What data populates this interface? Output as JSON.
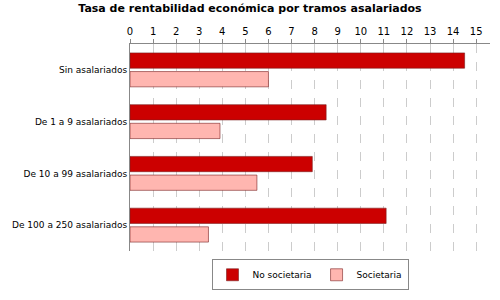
{
  "chart_data": {
    "type": "bar",
    "orientation": "horizontal",
    "title": "Tasa de rentabilidad económica por tramos asalariados",
    "categories": [
      "Sin asalariados",
      "De 1 a 9 asalariados",
      "De 10 a 99 asalariados",
      "De 100 a 250 asalariados"
    ],
    "series": [
      {
        "name": "No societaria",
        "color": "#cc0000",
        "values": [
          14.5,
          8.5,
          7.9,
          11.1
        ]
      },
      {
        "name": "Societaria",
        "color": "#ffb6b0",
        "values": [
          6.0,
          3.9,
          5.5,
          3.4
        ]
      }
    ],
    "xlim": [
      0,
      15.6
    ],
    "xticks": [
      0,
      1,
      2,
      3,
      4,
      5,
      6,
      7,
      8,
      9,
      10,
      11,
      12,
      13,
      14,
      15
    ],
    "grid": true,
    "legend": "bottom"
  }
}
